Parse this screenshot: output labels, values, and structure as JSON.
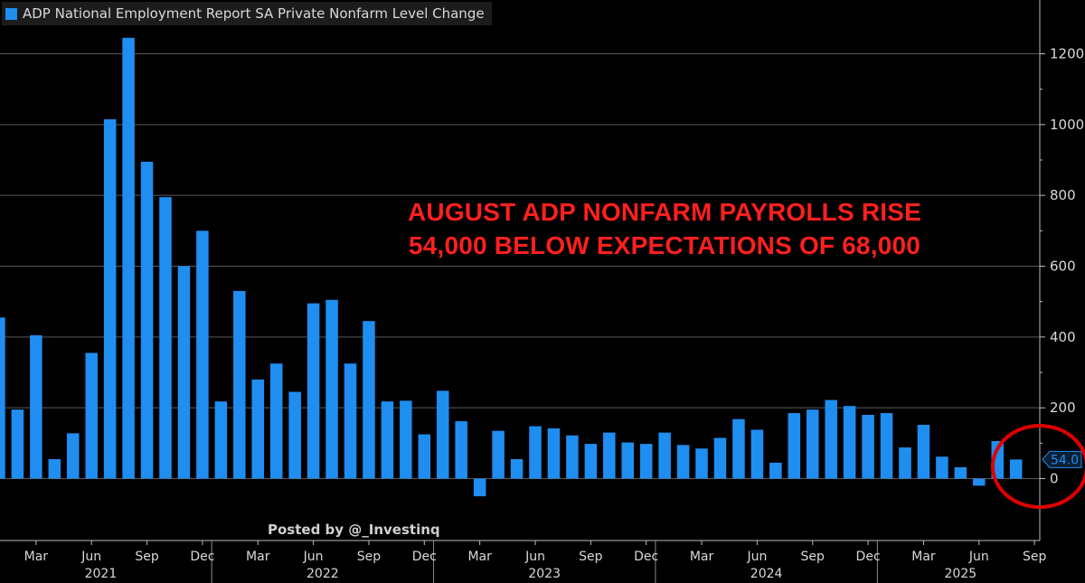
{
  "chart_data": {
    "type": "bar",
    "title": "ADP National Employment Report SA Private Nonfarm Level Change",
    "series": [
      {
        "name": "ADP National Employment Report SA Private Nonfarm Level Change",
        "color": "#1f8ef1",
        "values": [
          455,
          195,
          405,
          55,
          128,
          355,
          1015,
          1245,
          895,
          795,
          600,
          700,
          218,
          530,
          280,
          325,
          245,
          495,
          505,
          325,
          445,
          218,
          220,
          125,
          248,
          162,
          -50,
          135,
          55,
          148,
          142,
          122,
          98,
          130,
          102,
          98,
          130,
          95,
          85,
          115,
          168,
          138,
          45,
          185,
          195,
          222,
          205,
          180,
          185,
          88,
          152,
          62,
          32,
          -20,
          106,
          54
        ]
      }
    ],
    "x_tick_labels": [
      "Mar",
      "Jun",
      "Sep",
      "Dec",
      "Mar",
      "Jun",
      "Sep",
      "Dec",
      "Mar",
      "Jun",
      "Sep",
      "Dec",
      "Mar",
      "Jun",
      "Sep",
      "Dec",
      "Mar",
      "Jun",
      "Sep"
    ],
    "x_year_labels": [
      "2021",
      "2022",
      "2023",
      "2024",
      "2025"
    ],
    "y_ticks": [
      0,
      200,
      400,
      600,
      800,
      1000,
      1200
    ],
    "ylim": [
      -160,
      1300
    ],
    "grid": true,
    "legend_placement": "top-left",
    "last_value_label": "54.0",
    "annotation": {
      "line1": "AUGUST ADP NONFARM PAYROLLS RISE",
      "line2": "54,000 BELOW EXPECTATIONS OF 68,000",
      "color": "#ff1f1f"
    },
    "watermark": "Posted by @_Investinq",
    "highlight_circle_color": "#e00000"
  }
}
